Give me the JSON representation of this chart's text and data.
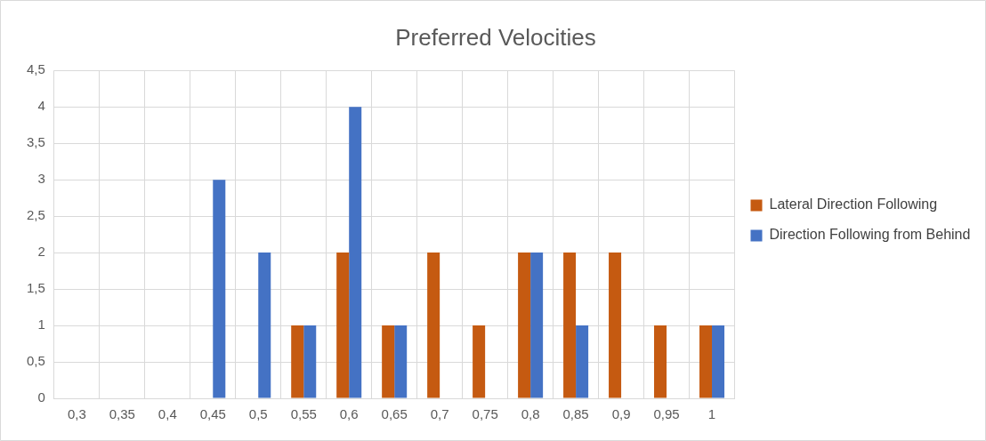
{
  "chart_data": {
    "type": "bar",
    "title": "Preferred Velocities",
    "categories": [
      "0,3",
      "0,35",
      "0,4",
      "0,45",
      "0,5",
      "0,55",
      "0,6",
      "0,65",
      "0,7",
      "0,75",
      "0,8",
      "0,85",
      "0,9",
      "0,95",
      "1"
    ],
    "series": [
      {
        "name": "Lateral Direction Following",
        "color": "#c55a11",
        "values": [
          0,
          0,
          0,
          0,
          0,
          1,
          2,
          1,
          2,
          1,
          2,
          2,
          2,
          1,
          1
        ]
      },
      {
        "name": "Direction Following from Behind",
        "color": "#4472c4",
        "values": [
          0,
          0,
          0,
          3,
          2,
          1,
          4,
          1,
          0,
          0,
          2,
          1,
          0,
          0,
          1
        ]
      }
    ],
    "ylim": [
      0,
      4.5
    ],
    "yticks": [
      0,
      {
        "value": 0.5,
        "label": "0,5"
      },
      1,
      {
        "value": 1.5,
        "label": "1,5"
      },
      2,
      {
        "value": 2.5,
        "label": "2,5"
      },
      3,
      {
        "value": 3.5,
        "label": "3,5"
      },
      4,
      {
        "value": 4.5,
        "label": "4,5"
      }
    ],
    "grid": true,
    "legend": "right"
  }
}
